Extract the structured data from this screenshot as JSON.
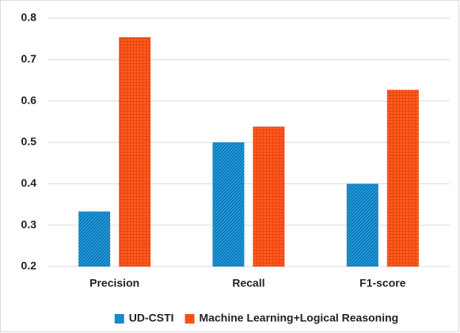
{
  "chart_data": {
    "type": "bar",
    "categories": [
      "Precision",
      "Recall",
      "F1-score"
    ],
    "series": [
      {
        "name": "UD-CSTI",
        "color": "#1e9be0",
        "values": [
          0.333,
          0.5,
          0.4
        ]
      },
      {
        "name": "Machine Learning+Logical Reasoning",
        "color": "#ff5a1e",
        "values": [
          0.754,
          0.538,
          0.627
        ]
      }
    ],
    "ylim": [
      0.2,
      0.8
    ],
    "yticks": [
      0.2,
      0.3,
      0.4,
      0.5,
      0.6,
      0.7,
      0.8
    ],
    "grid": true,
    "legend": "bottom"
  }
}
